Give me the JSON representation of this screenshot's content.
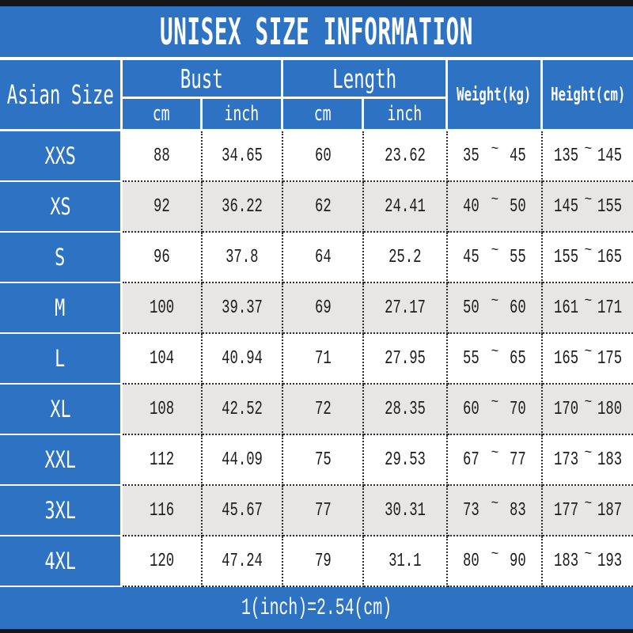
{
  "symbols": {
    "tilde": "~"
  },
  "colors": {
    "accent_blue": "#2e73c3",
    "alt_row_gray": "#e8e6e4",
    "border_bar_black": "#161616"
  },
  "chart_data": {
    "type": "table",
    "title": "UNISEX SIZE INFORMATION",
    "note": "1(inch)=2.54(cm)",
    "headers": {
      "size": "Asian Size",
      "bust": "Bust",
      "length": "Length",
      "weight": "Weight(kg)",
      "height": "Height(cm)"
    },
    "units": {
      "cm": "cm",
      "inch": "inch"
    },
    "rows": [
      {
        "size": "XXS",
        "bust_cm": "88",
        "bust_inch": "34.65",
        "length_cm": "60",
        "length_inch": "23.62",
        "weight_min": "35",
        "weight_max": "45",
        "height_min": "135",
        "height_max": "145"
      },
      {
        "size": "XS",
        "bust_cm": "92",
        "bust_inch": "36.22",
        "length_cm": "62",
        "length_inch": "24.41",
        "weight_min": "40",
        "weight_max": "50",
        "height_min": "145",
        "height_max": "155"
      },
      {
        "size": "S",
        "bust_cm": "96",
        "bust_inch": "37.8",
        "length_cm": "64",
        "length_inch": "25.2",
        "weight_min": "45",
        "weight_max": "55",
        "height_min": "155",
        "height_max": "165"
      },
      {
        "size": "M",
        "bust_cm": "100",
        "bust_inch": "39.37",
        "length_cm": "69",
        "length_inch": "27.17",
        "weight_min": "50",
        "weight_max": "60",
        "height_min": "161",
        "height_max": "171"
      },
      {
        "size": "L",
        "bust_cm": "104",
        "bust_inch": "40.94",
        "length_cm": "71",
        "length_inch": "27.95",
        "weight_min": "55",
        "weight_max": "65",
        "height_min": "165",
        "height_max": "175"
      },
      {
        "size": "XL",
        "bust_cm": "108",
        "bust_inch": "42.52",
        "length_cm": "72",
        "length_inch": "28.35",
        "weight_min": "60",
        "weight_max": "70",
        "height_min": "170",
        "height_max": "180"
      },
      {
        "size": "XXL",
        "bust_cm": "112",
        "bust_inch": "44.09",
        "length_cm": "75",
        "length_inch": "29.53",
        "weight_min": "67",
        "weight_max": "77",
        "height_min": "173",
        "height_max": "183"
      },
      {
        "size": "3XL",
        "bust_cm": "116",
        "bust_inch": "45.67",
        "length_cm": "77",
        "length_inch": "30.31",
        "weight_min": "73",
        "weight_max": "83",
        "height_min": "177",
        "height_max": "187"
      },
      {
        "size": "4XL",
        "bust_cm": "120",
        "bust_inch": "47.24",
        "length_cm": "79",
        "length_inch": "31.1",
        "weight_min": "80",
        "weight_max": "90",
        "height_min": "183",
        "height_max": "193"
      }
    ]
  }
}
